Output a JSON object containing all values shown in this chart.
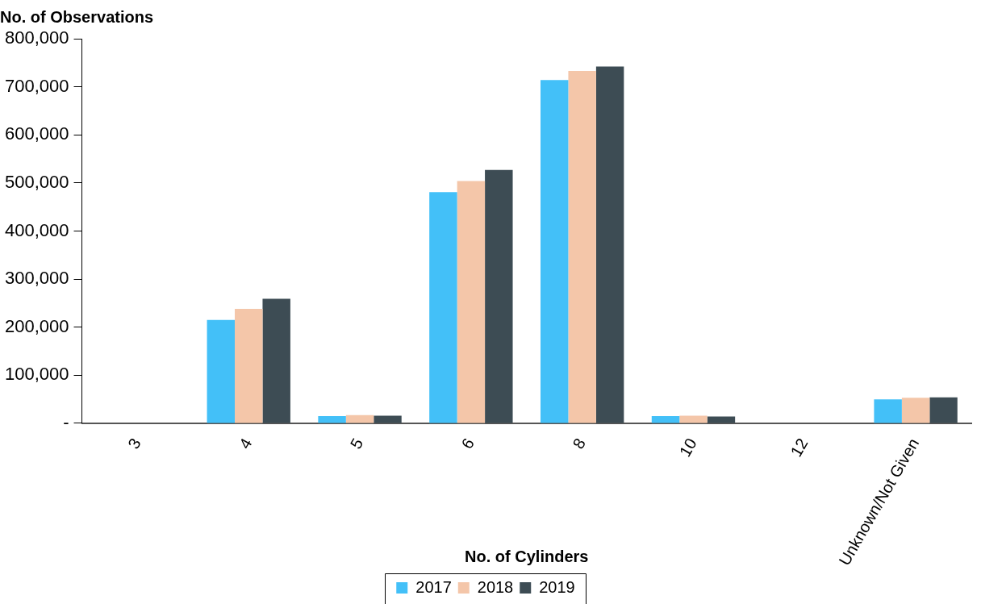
{
  "chart_data": {
    "type": "bar",
    "xlabel": "No. of Cylinders",
    "ylabel": "No. of Observations",
    "categories": [
      "3",
      "4",
      "5",
      "6",
      "8",
      "10",
      "12",
      "Unknown/Not Given"
    ],
    "series": [
      {
        "name": "2017",
        "color": "#43c0f8",
        "values": [
          0,
          215000,
          15000,
          481000,
          714000,
          15000,
          0,
          50000
        ]
      },
      {
        "name": "2018",
        "color": "#f4c6a9",
        "values": [
          null,
          238000,
          17000,
          504000,
          733000,
          16000,
          null,
          53000
        ]
      },
      {
        "name": "2019",
        "color": "#3d4c54",
        "values": [
          0,
          259000,
          16000,
          527000,
          742000,
          14000,
          0,
          54000
        ]
      }
    ],
    "ylim": [
      0,
      800000
    ],
    "yticks": [
      {
        "value": 0,
        "label": "-"
      },
      {
        "value": 100000,
        "label": "100,000"
      },
      {
        "value": 200000,
        "label": "200,000"
      },
      {
        "value": 300000,
        "label": "300,000"
      },
      {
        "value": 400000,
        "label": "400,000"
      },
      {
        "value": 500000,
        "label": "500,000"
      },
      {
        "value": 600000,
        "label": "600,000"
      },
      {
        "value": 700000,
        "label": "700,000"
      },
      {
        "value": 800000,
        "label": "800,000"
      }
    ],
    "grid": false,
    "legend": "bottom"
  }
}
